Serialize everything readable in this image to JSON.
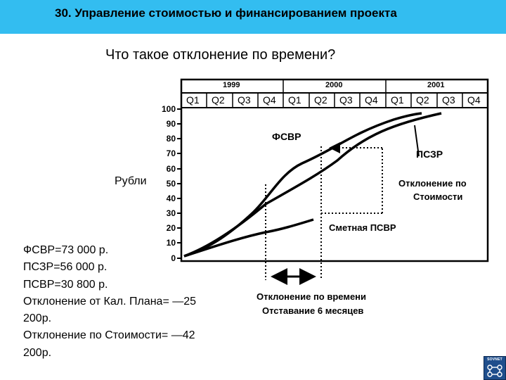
{
  "header": {
    "title": "30. Управление стоимостью и финансированием проекта"
  },
  "slide": {
    "question": "Что такое отклонение по времени?",
    "y_axis_label": "Рубли",
    "y_ticks": [
      "100",
      "90",
      "80",
      "70",
      "60",
      "50",
      "40",
      "30",
      "20",
      "10",
      "0"
    ],
    "years": [
      "1999",
      "2000",
      "2001"
    ],
    "quarters": [
      "Q1",
      "Q2",
      "Q3",
      "Q4",
      "Q1",
      "Q2",
      "Q3",
      "Q4",
      "Q1",
      "Q2",
      "Q3",
      "Q4"
    ],
    "labels": {
      "fsvr": "ФСВР",
      "pszr": "ПСЗР",
      "cost_variance_1": "Отклонение по",
      "cost_variance_2": "Стоимости",
      "planned": "Сметная ПСВР",
      "time_variance_1": "Отклонение по времени",
      "time_variance_2": "Отставание 6 месяцев"
    },
    "stats": [
      "ФСВР=73 000 р.",
      "ПСЗР=56 000 р.",
      "ПСВР=30 800 р.",
      "Отклонение от Кал. Плана= —25",
      "200р.",
      "Отклонение по Стоимости= —42",
      "200р."
    ],
    "logo_text": "SOVNET"
  },
  "colors": {
    "header_bg": "#33bdf0",
    "lines": "#000000"
  }
}
